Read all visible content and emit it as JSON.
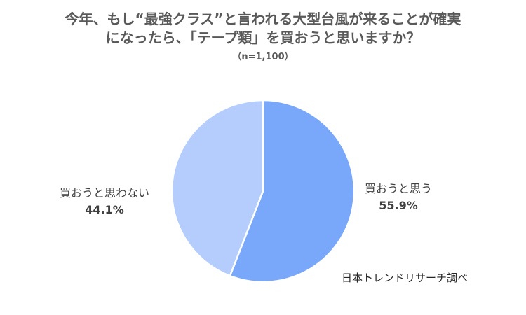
{
  "chart_data": {
    "type": "pie",
    "title_line1": "今年、もし“最強クラス”と言われる大型台風が来ることが確実",
    "title_line2": "になったら、「テープ類」を買おうと思いますか？",
    "subtitle": "（n=1,100）",
    "slices": [
      {
        "label": "買おうと思う",
        "value": 55.9,
        "value_label": "55.9%",
        "color": "#79a8fb"
      },
      {
        "label": "買おうと思わない",
        "value": 44.1,
        "value_label": "44.1%",
        "color": "#b4cdfd"
      }
    ],
    "source": "日本トレンドリサーチ調べ"
  }
}
